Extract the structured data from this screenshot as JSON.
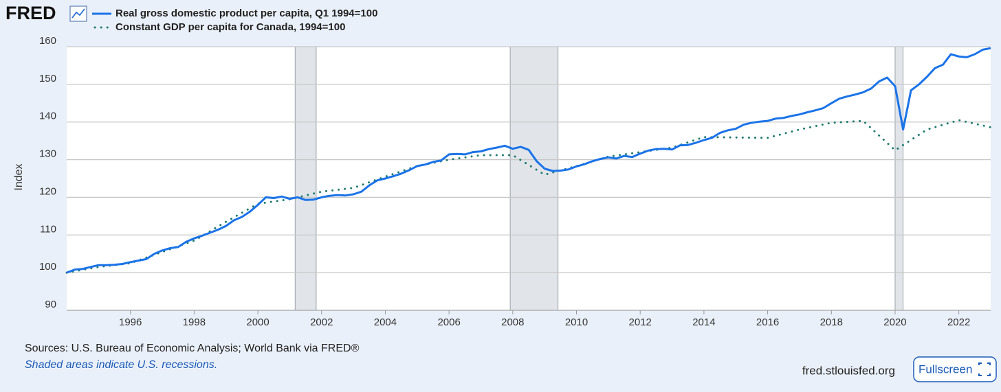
{
  "logo": "FRED",
  "chart_data": {
    "type": "line",
    "ylabel": "Index",
    "xlim": [
      1994,
      2023
    ],
    "ylim": [
      90,
      160
    ],
    "xticks": [
      1996,
      1998,
      2000,
      2002,
      2004,
      2006,
      2008,
      2010,
      2012,
      2014,
      2016,
      2018,
      2020,
      2022
    ],
    "yticks": [
      90,
      100,
      110,
      120,
      130,
      140,
      150,
      160
    ],
    "grid": true,
    "recessions": [
      [
        2001.17,
        2001.83
      ],
      [
        2007.92,
        2009.42
      ],
      [
        2020.0,
        2020.25
      ]
    ],
    "series": [
      {
        "name": "Real gross domestic product per capita, Q1 1994=100",
        "color": "#1a73e8",
        "style": "solid",
        "x": [
          1994,
          1994.25,
          1994.5,
          1994.75,
          1995,
          1995.25,
          1995.5,
          1995.75,
          1996,
          1996.25,
          1996.5,
          1996.75,
          1997,
          1997.25,
          1997.5,
          1997.75,
          1998,
          1998.25,
          1998.5,
          1998.75,
          1999,
          1999.25,
          1999.5,
          1999.75,
          2000,
          2000.25,
          2000.5,
          2000.75,
          2001,
          2001.25,
          2001.5,
          2001.75,
          2002,
          2002.25,
          2002.5,
          2002.75,
          2003,
          2003.25,
          2003.5,
          2003.75,
          2004,
          2004.25,
          2004.5,
          2004.75,
          2005,
          2005.25,
          2005.5,
          2005.75,
          2006,
          2006.25,
          2006.5,
          2006.75,
          2007,
          2007.25,
          2007.5,
          2007.75,
          2008,
          2008.25,
          2008.5,
          2008.75,
          2009,
          2009.25,
          2009.5,
          2009.75,
          2010,
          2010.25,
          2010.5,
          2010.75,
          2011,
          2011.25,
          2011.5,
          2011.75,
          2012,
          2012.25,
          2012.5,
          2012.75,
          2013,
          2013.25,
          2013.5,
          2013.75,
          2014,
          2014.25,
          2014.5,
          2014.75,
          2015,
          2015.25,
          2015.5,
          2015.75,
          2016,
          2016.25,
          2016.5,
          2016.75,
          2017,
          2017.25,
          2017.5,
          2017.75,
          2018,
          2018.25,
          2018.5,
          2018.75,
          2019,
          2019.25,
          2019.5,
          2019.75,
          2020,
          2020.25,
          2020.5,
          2020.75,
          2021,
          2021.25,
          2021.5,
          2021.75,
          2022,
          2022.25,
          2022.5,
          2022.75,
          2023
        ],
        "values": [
          100.0,
          100.8,
          101.0,
          101.5,
          102.0,
          102.0,
          102.1,
          102.3,
          102.8,
          103.2,
          103.6,
          105.0,
          105.9,
          106.5,
          106.8,
          108.2,
          109.1,
          109.8,
          110.6,
          111.4,
          112.4,
          113.9,
          114.8,
          116.2,
          118.0,
          120.0,
          119.8,
          120.2,
          119.6,
          120.0,
          119.3,
          119.4,
          120.0,
          120.4,
          120.6,
          120.5,
          120.8,
          121.5,
          123.2,
          124.5,
          125.0,
          125.6,
          126.3,
          127.2,
          128.3,
          128.7,
          129.4,
          129.8,
          131.4,
          131.5,
          131.4,
          132.0,
          132.2,
          132.8,
          133.2,
          133.7,
          132.9,
          133.4,
          132.6,
          129.6,
          127.6,
          127.0,
          127.1,
          127.4,
          128.2,
          128.8,
          129.6,
          130.2,
          130.6,
          130.3,
          131.0,
          130.7,
          131.6,
          132.4,
          132.8,
          132.9,
          132.7,
          133.8,
          133.9,
          134.5,
          135.2,
          135.8,
          137.1,
          137.8,
          138.2,
          139.3,
          139.8,
          140.1,
          140.3,
          140.9,
          141.1,
          141.6,
          142.0,
          142.6,
          143.1,
          143.7,
          145.0,
          146.2,
          146.8,
          147.3,
          147.9,
          148.9,
          150.8,
          151.8,
          149.5,
          138.0,
          148.4,
          150.0,
          152.0,
          154.3,
          155.2,
          158.0,
          157.4,
          157.2,
          158.0,
          159.2,
          159.6
        ]
      },
      {
        "name": "Constant GDP per capita for Canada, 1994=100",
        "color": "#1f7a6e",
        "style": "dotted",
        "x": [
          1994,
          1995,
          1996,
          1997,
          1998,
          1999,
          2000,
          2001,
          2002,
          2003,
          2004,
          2005,
          2006,
          2007,
          2008,
          2009,
          2010,
          2011,
          2012,
          2013,
          2014,
          2015,
          2016,
          2017,
          2018,
          2019,
          2020,
          2021,
          2022,
          2023
        ],
        "values": [
          100.0,
          101.5,
          102.5,
          105.5,
          108.5,
          113.5,
          118.3,
          119.5,
          121.5,
          122.5,
          125.5,
          128.3,
          130.0,
          131.2,
          131.2,
          126.0,
          128.3,
          130.8,
          132.0,
          133.2,
          136.0,
          135.9,
          135.8,
          138.0,
          139.8,
          140.3,
          132.5,
          138.0,
          140.5,
          138.6
        ]
      }
    ]
  },
  "sources": "Sources: U.S. Bureau of Economic Analysis; World Bank via FRED®",
  "note": "Shaded areas indicate U.S. recessions.",
  "site": "fred.stlouisfed.org",
  "button": "Fullscreen"
}
